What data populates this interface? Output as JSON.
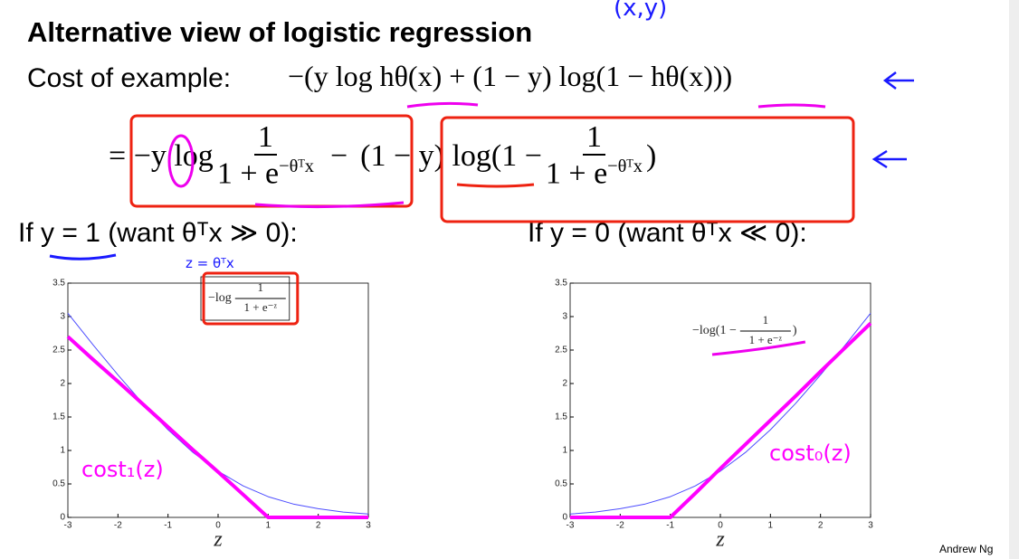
{
  "title": "Alternative view of logistic regression",
  "cost_label": "Cost of example:",
  "cost_formula": "−(y log hθ(x) + (1 − y) log(1 − hθ(x)))",
  "expansion": {
    "eq": "=",
    "term1_prefix": "−y log",
    "num": "1",
    "den": "1 + e",
    "den_exp": "−θᵀx",
    "minus": "−",
    "term2_prefix": "(1 − y) log(1 −",
    "term2_suffix": ")"
  },
  "cases": [
    "If y = 1 (want θᵀx ≫ 0):",
    "If y = 0 (want θᵀx ≪ 0):"
  ],
  "handwriting": {
    "xy": "(x,y)",
    "z_def": "z = θᵀx"
  },
  "chart_data": [
    {
      "type": "line",
      "xlabel": "z",
      "x": [
        -3,
        -2.5,
        -2,
        -1.5,
        -1,
        -0.5,
        0,
        0.5,
        1,
        1.5,
        2,
        2.5,
        3
      ],
      "xlim": [
        -3,
        3
      ],
      "xticks": [
        -3,
        -2,
        -1,
        0,
        1,
        2,
        3
      ],
      "ylim": [
        0,
        3.5
      ],
      "yticks": [
        0,
        0.5,
        1,
        1.5,
        2,
        2.5,
        3,
        3.5
      ],
      "legend_prefix": "−log",
      "legend_num": "1",
      "legend_den": "1 + e⁻ᶻ",
      "legend_suffix": "",
      "series": [
        {
          "color": "#4d4dff",
          "values": [
            3.05,
            2.58,
            2.13,
            1.7,
            1.31,
            0.97,
            0.69,
            0.47,
            0.31,
            0.2,
            0.13,
            0.08,
            0.05
          ]
        },
        {
          "name": "cost₁(z)",
          "color": "#ff00ff",
          "values": [
            2.7,
            2.36,
            2.03,
            1.69,
            1.35,
            1.01,
            0.68,
            0.34,
            0,
            0,
            0,
            0,
            0
          ]
        }
      ]
    },
    {
      "type": "line",
      "xlabel": "z",
      "x": [
        -3,
        -2.5,
        -2,
        -1.5,
        -1,
        -0.5,
        0,
        0.5,
        1,
        1.5,
        2,
        2.5,
        3
      ],
      "xlim": [
        -3,
        3
      ],
      "xticks": [
        -3,
        -2,
        -1,
        0,
        1,
        2,
        3
      ],
      "ylim": [
        0,
        3.5
      ],
      "yticks": [
        0,
        0.5,
        1,
        1.5,
        2,
        2.5,
        3,
        3.5
      ],
      "legend_prefix": "−log(1 −",
      "legend_num": "1",
      "legend_den": "1 + e⁻ᶻ",
      "legend_suffix": ")",
      "series": [
        {
          "color": "#4d4dff",
          "values": [
            0.05,
            0.08,
            0.13,
            0.2,
            0.31,
            0.47,
            0.69,
            0.97,
            1.31,
            1.7,
            2.13,
            2.58,
            3.05
          ]
        },
        {
          "name": "cost₀(z)",
          "color": "#ff00ff",
          "values": [
            0,
            0,
            0,
            0,
            0,
            0.36,
            0.73,
            1.09,
            1.45,
            1.81,
            2.18,
            2.54,
            2.9
          ]
        }
      ]
    }
  ],
  "footer": "Andrew Ng"
}
